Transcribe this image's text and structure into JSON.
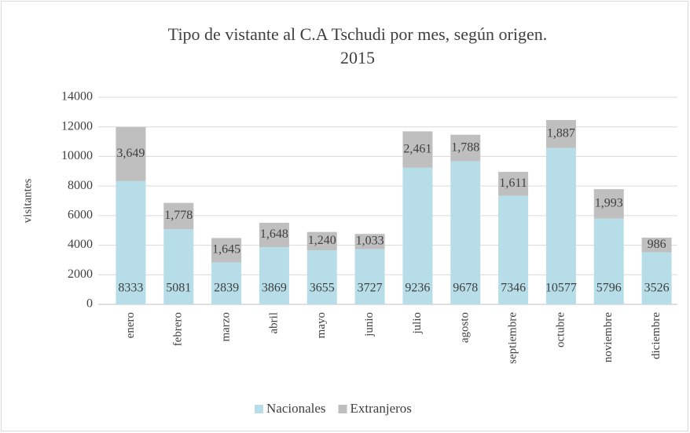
{
  "chart_data": {
    "type": "stacked_bar",
    "title": "Tipo de vistante al C.A Tschudi por mes, según origen.",
    "subtitle": "2015",
    "y_label": "visitantes",
    "categories": [
      "enero",
      "febrero",
      "marzo",
      "abril",
      "mayo",
      "junio",
      "julio",
      "agosto",
      "septiembre",
      "octubre",
      "noviembre",
      "diciembre"
    ],
    "series": [
      {
        "name": "Nacionales",
        "color": "#b7dee8",
        "values": [
          8333,
          5081,
          2839,
          3869,
          3655,
          3727,
          9236,
          9678,
          7346,
          10577,
          5796,
          3526
        ]
      },
      {
        "name": "Extranjeros",
        "color": "#bfbfbf",
        "values": [
          3649,
          1778,
          1645,
          1648,
          1240,
          1033,
          2461,
          1788,
          1611,
          1887,
          1993,
          986
        ],
        "value_labels": [
          "3,649",
          "1,778",
          "1,645",
          "1,648",
          "1,240",
          "1,033",
          "2,461",
          "1,788",
          "1,611",
          "1,887",
          "1,993",
          "986"
        ]
      }
    ],
    "ylim": [
      0,
      14000
    ],
    "yticks": [
      0,
      2000,
      4000,
      6000,
      8000,
      10000,
      12000,
      14000
    ],
    "grid": true,
    "legend": "bottom"
  }
}
